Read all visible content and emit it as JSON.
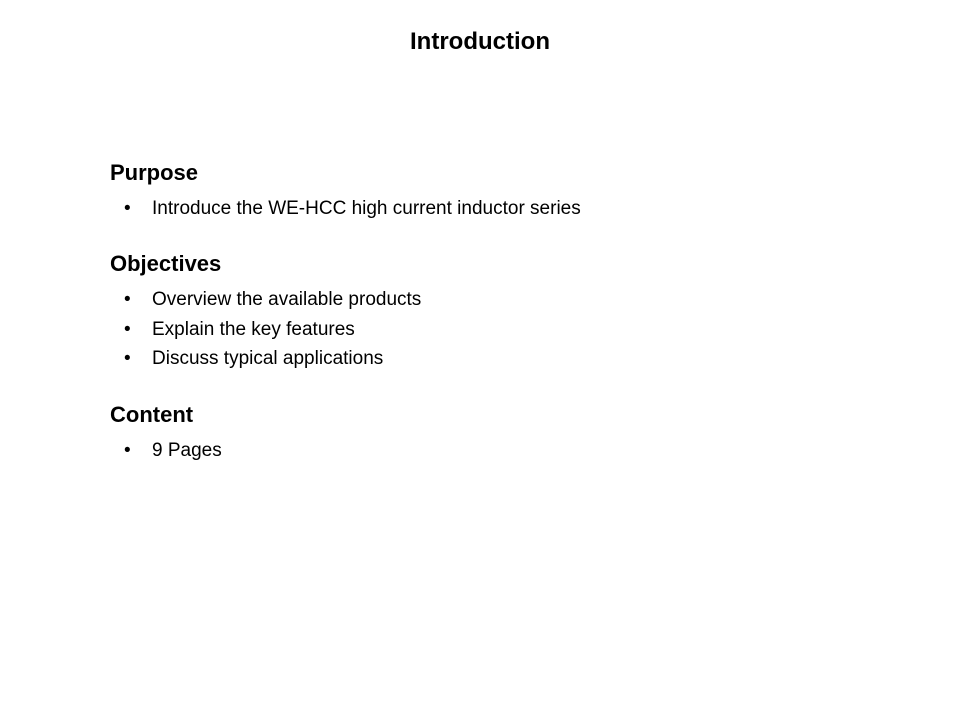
{
  "title": "Introduction",
  "sections": [
    {
      "heading": "Purpose",
      "items": [
        "Introduce the WE-HCC high current inductor series"
      ]
    },
    {
      "heading": "Objectives",
      "items": [
        "Overview the available products",
        "Explain the key features",
        "Discuss typical applications"
      ]
    },
    {
      "heading": "Content",
      "items": [
        "9 Pages"
      ]
    }
  ]
}
